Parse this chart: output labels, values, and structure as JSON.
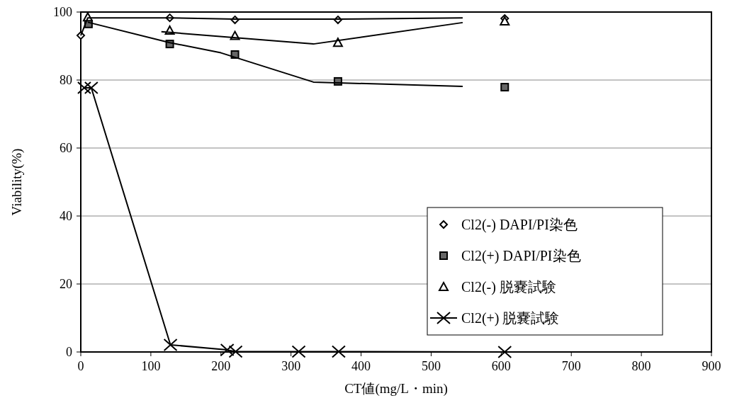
{
  "chart_data": {
    "type": "scatter",
    "xlabel": "CT値(mg/L・min)",
    "ylabel": "Viability(%)",
    "xlim": [
      0,
      900
    ],
    "ylim": [
      0,
      100
    ],
    "xticks": [
      0,
      100,
      200,
      300,
      400,
      500,
      600,
      700,
      800,
      900
    ],
    "yticks": [
      0,
      20,
      40,
      60,
      80,
      100
    ],
    "grid": "y",
    "legend": "bottom right",
    "series": [
      {
        "name": "Cl2(-) DAPI/PI染色",
        "marker": "diamond",
        "color": "#000000",
        "x": [
          0,
          127,
          220,
          367,
          605
        ],
        "values": [
          93.1,
          98.3,
          97.7,
          97.7,
          98.1
        ]
      },
      {
        "name": "Cl2(+) DAPI/PI染色",
        "marker": "square",
        "color": "#000000",
        "x": [
          11,
          127,
          220,
          367,
          605
        ],
        "values": [
          96.5,
          90.6,
          87.5,
          79.6,
          77.9
        ]
      },
      {
        "name": "Cl2(-) 脱嚢試験",
        "marker": "triangle",
        "color": "#000000",
        "x": [
          10,
          127,
          220,
          367,
          605
        ],
        "values": [
          98.5,
          94.6,
          93,
          91,
          97.3
        ]
      },
      {
        "name": "Cl2(+) 脱嚢試験",
        "type": "line",
        "marker": "cross",
        "color": "#000000",
        "x": [
          5,
          15,
          128,
          209,
          221,
          311,
          368,
          605
        ],
        "values": [
          77.7,
          77.7,
          2.1,
          0.6,
          0.1,
          0.1,
          0.1,
          0
        ]
      },
      {
        "type": "line",
        "marker": "none",
        "color": "#000000",
        "x": [
          0,
          10,
          127,
          220,
          367,
          545
        ],
        "values": [
          93.1,
          98.3,
          98.3,
          97.9,
          97.9,
          98.3
        ]
      },
      {
        "type": "line",
        "marker": "none",
        "color": "#000000",
        "x": [
          10,
          127,
          200,
          332,
          545
        ],
        "values": [
          97,
          91,
          88,
          79.4,
          78.1
        ]
      },
      {
        "type": "line",
        "marker": "none",
        "color": "#000000",
        "x": [
          115,
          332,
          545
        ],
        "values": [
          94.2,
          90.6,
          96.9
        ]
      }
    ]
  }
}
